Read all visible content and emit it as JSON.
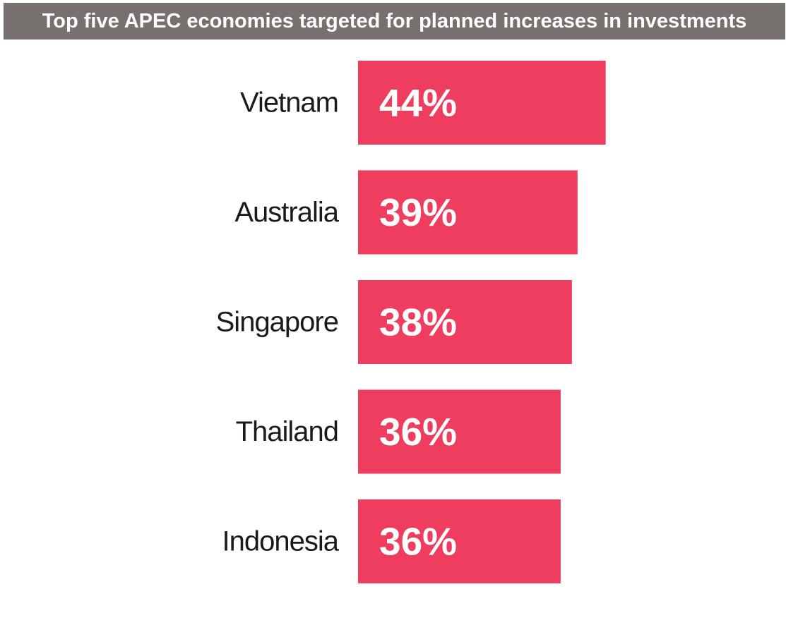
{
  "title": "Top five APEC economies targeted for planned increases in investments",
  "colors": {
    "title_background": "#76706e",
    "title_text": "#ffffff",
    "bar": "#ee3d5f",
    "value_text": "#ffffff",
    "category_text": "#1a1a1a"
  },
  "chart_data": {
    "type": "bar",
    "orientation": "horizontal",
    "title": "Top five APEC economies targeted for planned increases in investments",
    "xlabel": "",
    "ylabel": "",
    "categories": [
      "Vietnam",
      "Australia",
      "Singapore",
      "Thailand",
      "Indonesia"
    ],
    "values": [
      44,
      39,
      38,
      36,
      36
    ],
    "value_labels": [
      "44%",
      "39%",
      "38%",
      "36%",
      "36%"
    ],
    "unit": "%",
    "grid": false,
    "legend": "none"
  }
}
